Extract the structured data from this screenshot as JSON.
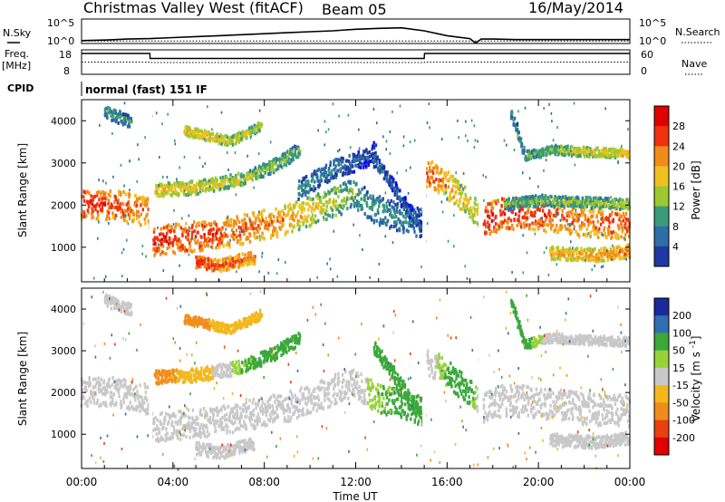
{
  "header": {
    "title": "Christmas Valley West (fitACF)",
    "beam": "Beam 05",
    "date": "16/May/2014"
  },
  "cpid": {
    "label": "CPID",
    "value": "normal (fast) 151 IF"
  },
  "chart_data": [
    {
      "type": "line",
      "panel": "noise",
      "left_label": "N.Sky",
      "right_label": "N.Search",
      "left_ticks": [
        "10^5",
        "10^0"
      ],
      "right_ticks": [
        "10^5",
        "10^0"
      ],
      "yscale": "log",
      "x": [
        0,
        1,
        2,
        3,
        4,
        5,
        6,
        7,
        8,
        9,
        10,
        11,
        12,
        13,
        14,
        15,
        16,
        17,
        17.25,
        17.5,
        18,
        19,
        20,
        21,
        22,
        23,
        24
      ],
      "series": [
        {
          "values": [
            0.6,
            0.7,
            0.9,
            1.0,
            1.2,
            1.4,
            1.6,
            1.8,
            2.0,
            2.2,
            2.4,
            2.6,
            2.9,
            3.1,
            3.2,
            2.6,
            1.6,
            1.0,
            0.1,
            0.9,
            0.9,
            0.8,
            0.8,
            0.8,
            0.8,
            0.8,
            0.8
          ]
        },
        {
          "values": [
            0.5,
            0.5,
            0.5,
            0.5,
            0.5,
            0.5,
            0.5,
            0.5,
            0.5,
            0.5,
            0.5,
            0.5,
            0.5,
            0.5,
            0.5,
            0.5,
            0.5,
            0.5,
            0.5,
            0.5,
            0.5,
            0.5,
            0.5,
            0.5,
            0.5,
            0.5,
            0.5
          ]
        }
      ]
    },
    {
      "type": "line",
      "panel": "frequency",
      "left_label": "Freq.",
      "left_unit": "[MHz]",
      "right_label": "Nave",
      "left_ticks": [
        "18",
        "8"
      ],
      "right_ticks": [
        "60",
        "0"
      ],
      "ylim": [
        8,
        18
      ],
      "x": [
        0,
        2.99,
        3.0,
        15.0,
        15.01,
        24
      ],
      "series": [
        {
          "values": [
            16.5,
            16.5,
            14.5,
            14.5,
            16.5,
            16.5
          ]
        },
        {
          "values": [
            13.0,
            13.0,
            12.8,
            12.8,
            13.0,
            13.0
          ]
        }
      ]
    },
    {
      "type": "heatmap",
      "panel": "power",
      "ylabel": "Slant Range [km]",
      "yticks": [
        "1000",
        "2000",
        "3000",
        "4000"
      ],
      "ylim": [
        180,
        4500
      ],
      "colorbar": {
        "label": "Power [dB]",
        "ticks": [
          "4",
          "8",
          "12",
          "16",
          "20",
          "24",
          "28"
        ],
        "range": [
          0,
          30
        ]
      },
      "bands": [
        {
          "t": [
            0,
            1.5,
            3.0
          ],
          "r": [
            2050,
            2050,
            1850
          ],
          "w": 350,
          "v": [
            28,
            26,
            24
          ]
        },
        {
          "t": [
            3.1,
            6,
            9,
            11,
            11.8,
            13,
            14.9
          ],
          "r": [
            1200,
            1350,
            1700,
            2100,
            2300,
            1900,
            1600
          ],
          "w": 350,
          "v": [
            28,
            26,
            22,
            16,
            12,
            10,
            8
          ]
        },
        {
          "t": [
            3.2,
            5,
            7,
            8.5,
            9.5
          ],
          "r": [
            2400,
            2450,
            2650,
            3000,
            3350
          ],
          "w": 160,
          "v": [
            20,
            18,
            16,
            14,
            12
          ]
        },
        {
          "t": [
            4.5,
            6.5,
            7.8
          ],
          "r": [
            3800,
            3550,
            3900
          ],
          "w": 110,
          "v": [
            20,
            18,
            16
          ]
        },
        {
          "t": [
            1.0,
            2.2
          ],
          "r": [
            4250,
            4000
          ],
          "w": 140,
          "v": [
            12,
            10
          ]
        },
        {
          "t": [
            9.5,
            11,
            12.2,
            12.8
          ],
          "r": [
            2400,
            2900,
            3100,
            3300
          ],
          "w": 220,
          "v": [
            10,
            8,
            6,
            4
          ]
        },
        {
          "t": [
            12.8,
            13.6,
            14.3,
            14.9
          ],
          "r": [
            3100,
            2500,
            1900,
            1500
          ],
          "w": 160,
          "v": [
            8,
            6,
            6,
            6
          ]
        },
        {
          "t": [
            15.1,
            16,
            17,
            17.4
          ],
          "r": [
            2800,
            2500,
            2000,
            1800
          ],
          "w": 330,
          "v": [
            26,
            22,
            18,
            16
          ]
        },
        {
          "t": [
            17.6,
            18.5,
            20,
            22,
            24
          ],
          "r": [
            1700,
            1850,
            1800,
            1650,
            1600
          ],
          "w": 380,
          "v": [
            28,
            28,
            26,
            24,
            26
          ]
        },
        {
          "t": [
            18.5,
            20,
            22,
            24
          ],
          "r": [
            2050,
            2150,
            2100,
            2050
          ],
          "w": 130,
          "v": [
            12,
            14,
            14,
            16
          ]
        },
        {
          "t": [
            20.5,
            22.5,
            24
          ],
          "r": [
            900,
            850,
            950
          ],
          "w": 150,
          "v": [
            20,
            22,
            24
          ]
        },
        {
          "t": [
            18.8,
            19.4,
            20.5,
            22,
            24
          ],
          "r": [
            4200,
            3200,
            3350,
            3300,
            3250
          ],
          "w": 110,
          "v": [
            10,
            12,
            14,
            18,
            20
          ]
        },
        {
          "t": [
            5.0,
            6.0,
            7.5
          ],
          "r": [
            700,
            600,
            800
          ],
          "w": 150,
          "v": [
            28,
            26,
            24
          ]
        }
      ]
    },
    {
      "type": "heatmap",
      "panel": "velocity",
      "ylabel": "Slant Range [km]",
      "yticks": [
        "1000",
        "2000",
        "3000",
        "4000"
      ],
      "ylim": [
        180,
        4500
      ],
      "colorbar": {
        "label": "Velocity [m s^-1]",
        "ticks": [
          "200",
          "100",
          "50",
          "15",
          "-15",
          "-50",
          "-100",
          "-200"
        ],
        "range": [
          -250,
          250
        ]
      },
      "xlabel": "Time UT",
      "xticks": [
        "00:00",
        "04:00",
        "08:00",
        "12:00",
        "16:00",
        "20:00",
        "00:00"
      ],
      "xlim": [
        0,
        24
      ],
      "bands": [
        {
          "t": [
            0,
            1.5,
            3.0
          ],
          "r": [
            2050,
            2050,
            1850
          ],
          "w": 350,
          "v": [
            0,
            0,
            0
          ]
        },
        {
          "t": [
            3.1,
            6,
            9,
            11,
            11.8,
            13,
            14.9
          ],
          "r": [
            1200,
            1350,
            1700,
            2100,
            2300,
            1900,
            1600
          ],
          "w": 350,
          "v": [
            0,
            0,
            0,
            0,
            0,
            30,
            40
          ]
        },
        {
          "t": [
            3.2,
            5,
            7,
            8.5,
            9.5
          ],
          "r": [
            2400,
            2450,
            2650,
            3000,
            3350
          ],
          "w": 160,
          "v": [
            -60,
            -40,
            30,
            45,
            40
          ]
        },
        {
          "t": [
            4.5,
            6.5,
            7.8
          ],
          "r": [
            3800,
            3550,
            3900
          ],
          "w": 110,
          "v": [
            -60,
            -40,
            -30
          ]
        },
        {
          "t": [
            1.0,
            2.2
          ],
          "r": [
            4250,
            4000
          ],
          "w": 140,
          "v": [
            0,
            0
          ]
        },
        {
          "t": [
            12.8,
            13.6,
            14.3,
            14.9
          ],
          "r": [
            3100,
            2500,
            1900,
            1500
          ],
          "w": 160,
          "v": [
            40,
            45,
            40,
            35
          ]
        },
        {
          "t": [
            15.1,
            16,
            17,
            17.4
          ],
          "r": [
            2800,
            2500,
            2000,
            1800
          ],
          "w": 330,
          "v": [
            0,
            35,
            40,
            0
          ]
        },
        {
          "t": [
            17.6,
            18.5,
            20,
            22,
            24
          ],
          "r": [
            1700,
            1850,
            1800,
            1650,
            1600
          ],
          "w": 380,
          "v": [
            0,
            0,
            0,
            0,
            0
          ]
        },
        {
          "t": [
            18.8,
            19.4,
            20.5,
            22,
            24
          ],
          "r": [
            4200,
            3200,
            3350,
            3300,
            3250
          ],
          "w": 110,
          "v": [
            40,
            45,
            0,
            0,
            0
          ]
        },
        {
          "t": [
            20.5,
            22.5,
            24
          ],
          "r": [
            900,
            850,
            950
          ],
          "w": 150,
          "v": [
            0,
            0,
            0
          ]
        },
        {
          "t": [
            5.0,
            6.0,
            7.5
          ],
          "r": [
            700,
            600,
            800
          ],
          "w": 150,
          "v": [
            0,
            0,
            0
          ]
        }
      ]
    }
  ]
}
